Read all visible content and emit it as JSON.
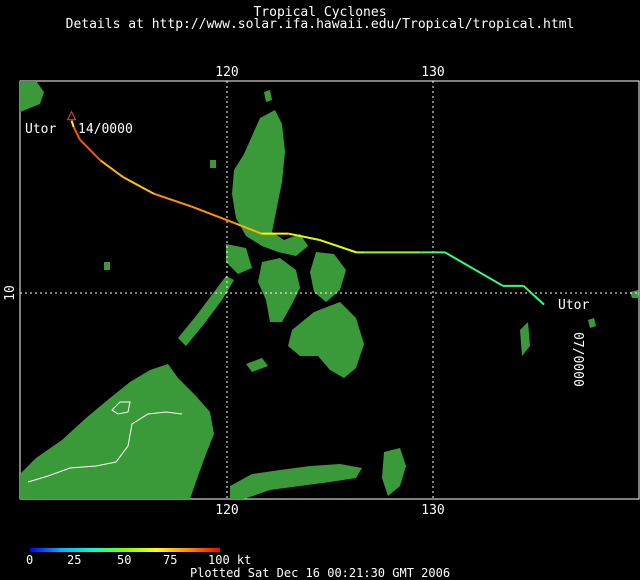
{
  "header": {
    "title": "Tropical Cyclones",
    "subtitle": "Details at http://www.solar.ifa.hawaii.edu/Tropical/tropical.html"
  },
  "axes": {
    "lon_top": [
      "120",
      "130"
    ],
    "lon_bottom": [
      "120",
      "130"
    ],
    "lat_left": [
      "10"
    ],
    "lon_range": [
      110,
      140
    ],
    "lat_range": [
      0,
      20
    ],
    "grid": "dotted"
  },
  "storm": {
    "name_start": "Utor",
    "label_start": "14/0000",
    "name_end": "Utor",
    "label_end": "07/0000",
    "track": [
      {
        "lon": 135.4,
        "lat": 9.3,
        "kt": 40
      },
      {
        "lon": 134.4,
        "lat": 10.2,
        "kt": 40
      },
      {
        "lon": 133.4,
        "lat": 10.2,
        "kt": 40
      },
      {
        "lon": 130.6,
        "lat": 11.8,
        "kt": 40
      },
      {
        "lon": 129.4,
        "lat": 11.8,
        "kt": 45
      },
      {
        "lon": 126.7,
        "lat": 11.8,
        "kt": 60
      },
      {
        "lon": 126.3,
        "lat": 11.8,
        "kt": 60
      },
      {
        "lon": 124.5,
        "lat": 12.4,
        "kt": 65
      },
      {
        "lon": 123.0,
        "lat": 12.7,
        "kt": 60
      },
      {
        "lon": 121.7,
        "lat": 12.7,
        "kt": 75
      },
      {
        "lon": 120.4,
        "lat": 13.2,
        "kt": 80
      },
      {
        "lon": 118.3,
        "lat": 14.0,
        "kt": 85
      },
      {
        "lon": 116.5,
        "lat": 14.6,
        "kt": 80
      },
      {
        "lon": 115.0,
        "lat": 15.4,
        "kt": 70
      },
      {
        "lon": 113.9,
        "lat": 16.2,
        "kt": 85
      },
      {
        "lon": 112.9,
        "lat": 17.2,
        "kt": 95
      },
      {
        "lon": 112.6,
        "lat": 17.8,
        "kt": 85
      },
      {
        "lon": 112.5,
        "lat": 18.1,
        "kt": 50
      }
    ]
  },
  "legend": {
    "ticks": [
      "0",
      "25",
      "50",
      "75",
      "100 kt"
    ],
    "colors": [
      "#0000ff",
      "#00b4ff",
      "#00ffc8",
      "#7fff00",
      "#ffff00",
      "#ff8c00",
      "#ff0000"
    ]
  },
  "footer": {
    "plotted": "Plotted Sat Dec 16 00:21:30 GMT 2006"
  },
  "colors": {
    "land": "#3a9a3a",
    "background": "#000000",
    "border": "#ffffff"
  }
}
